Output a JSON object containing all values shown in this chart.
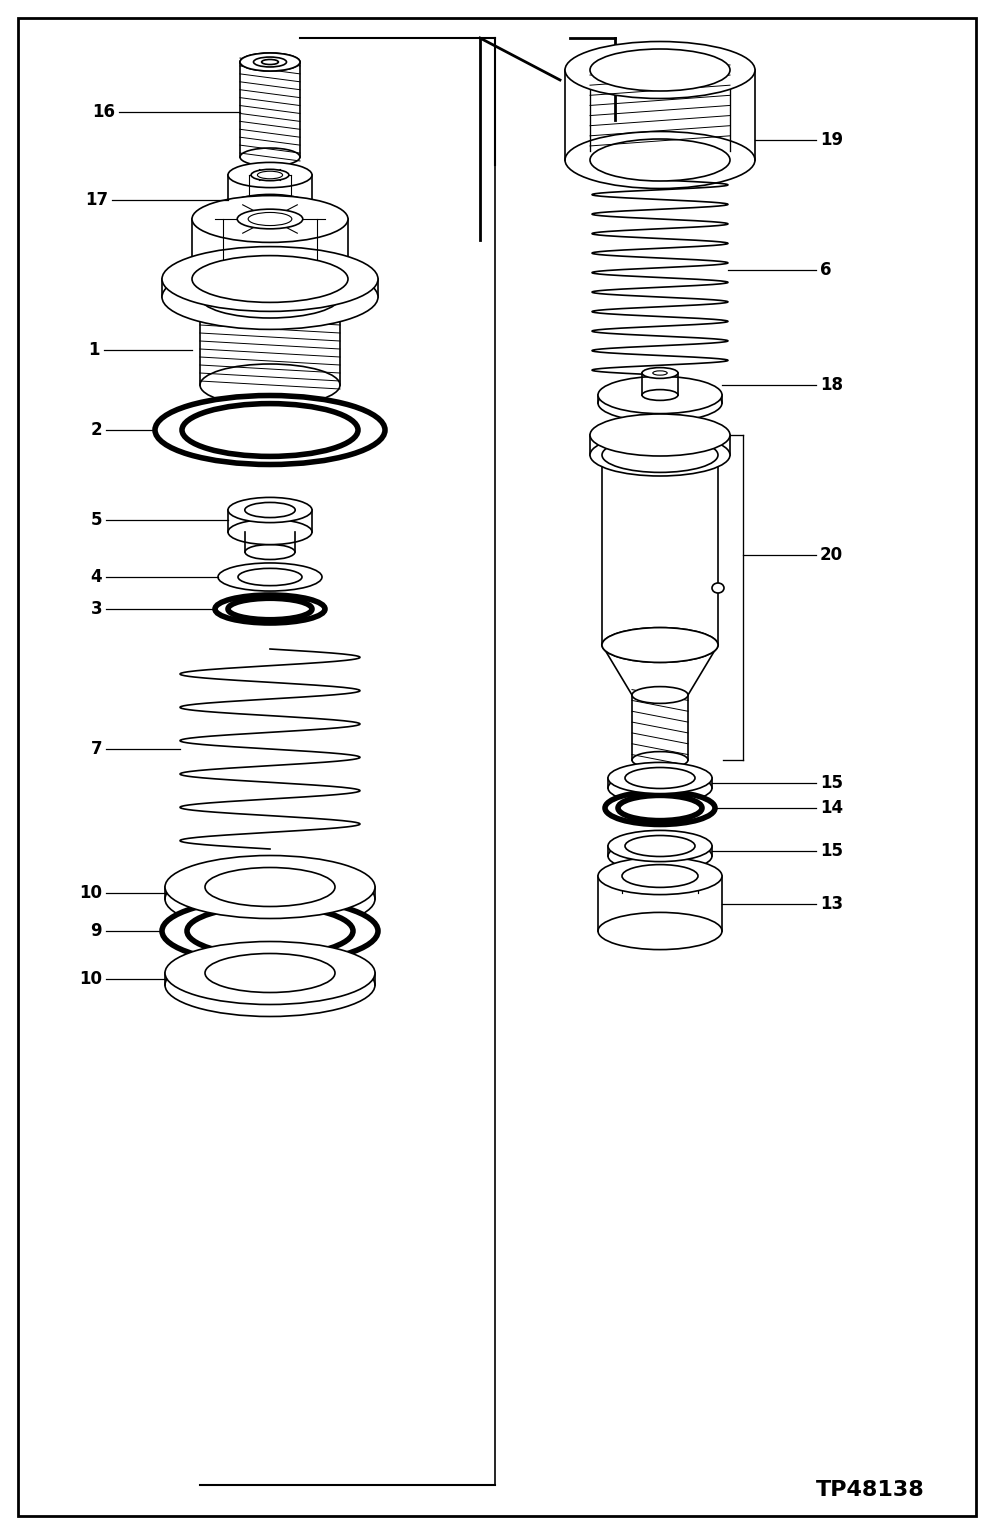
{
  "part_number": "TP48138",
  "bg": "#ffffff",
  "lc": "#000000",
  "fs_label": 12,
  "fs_pn": 16
}
